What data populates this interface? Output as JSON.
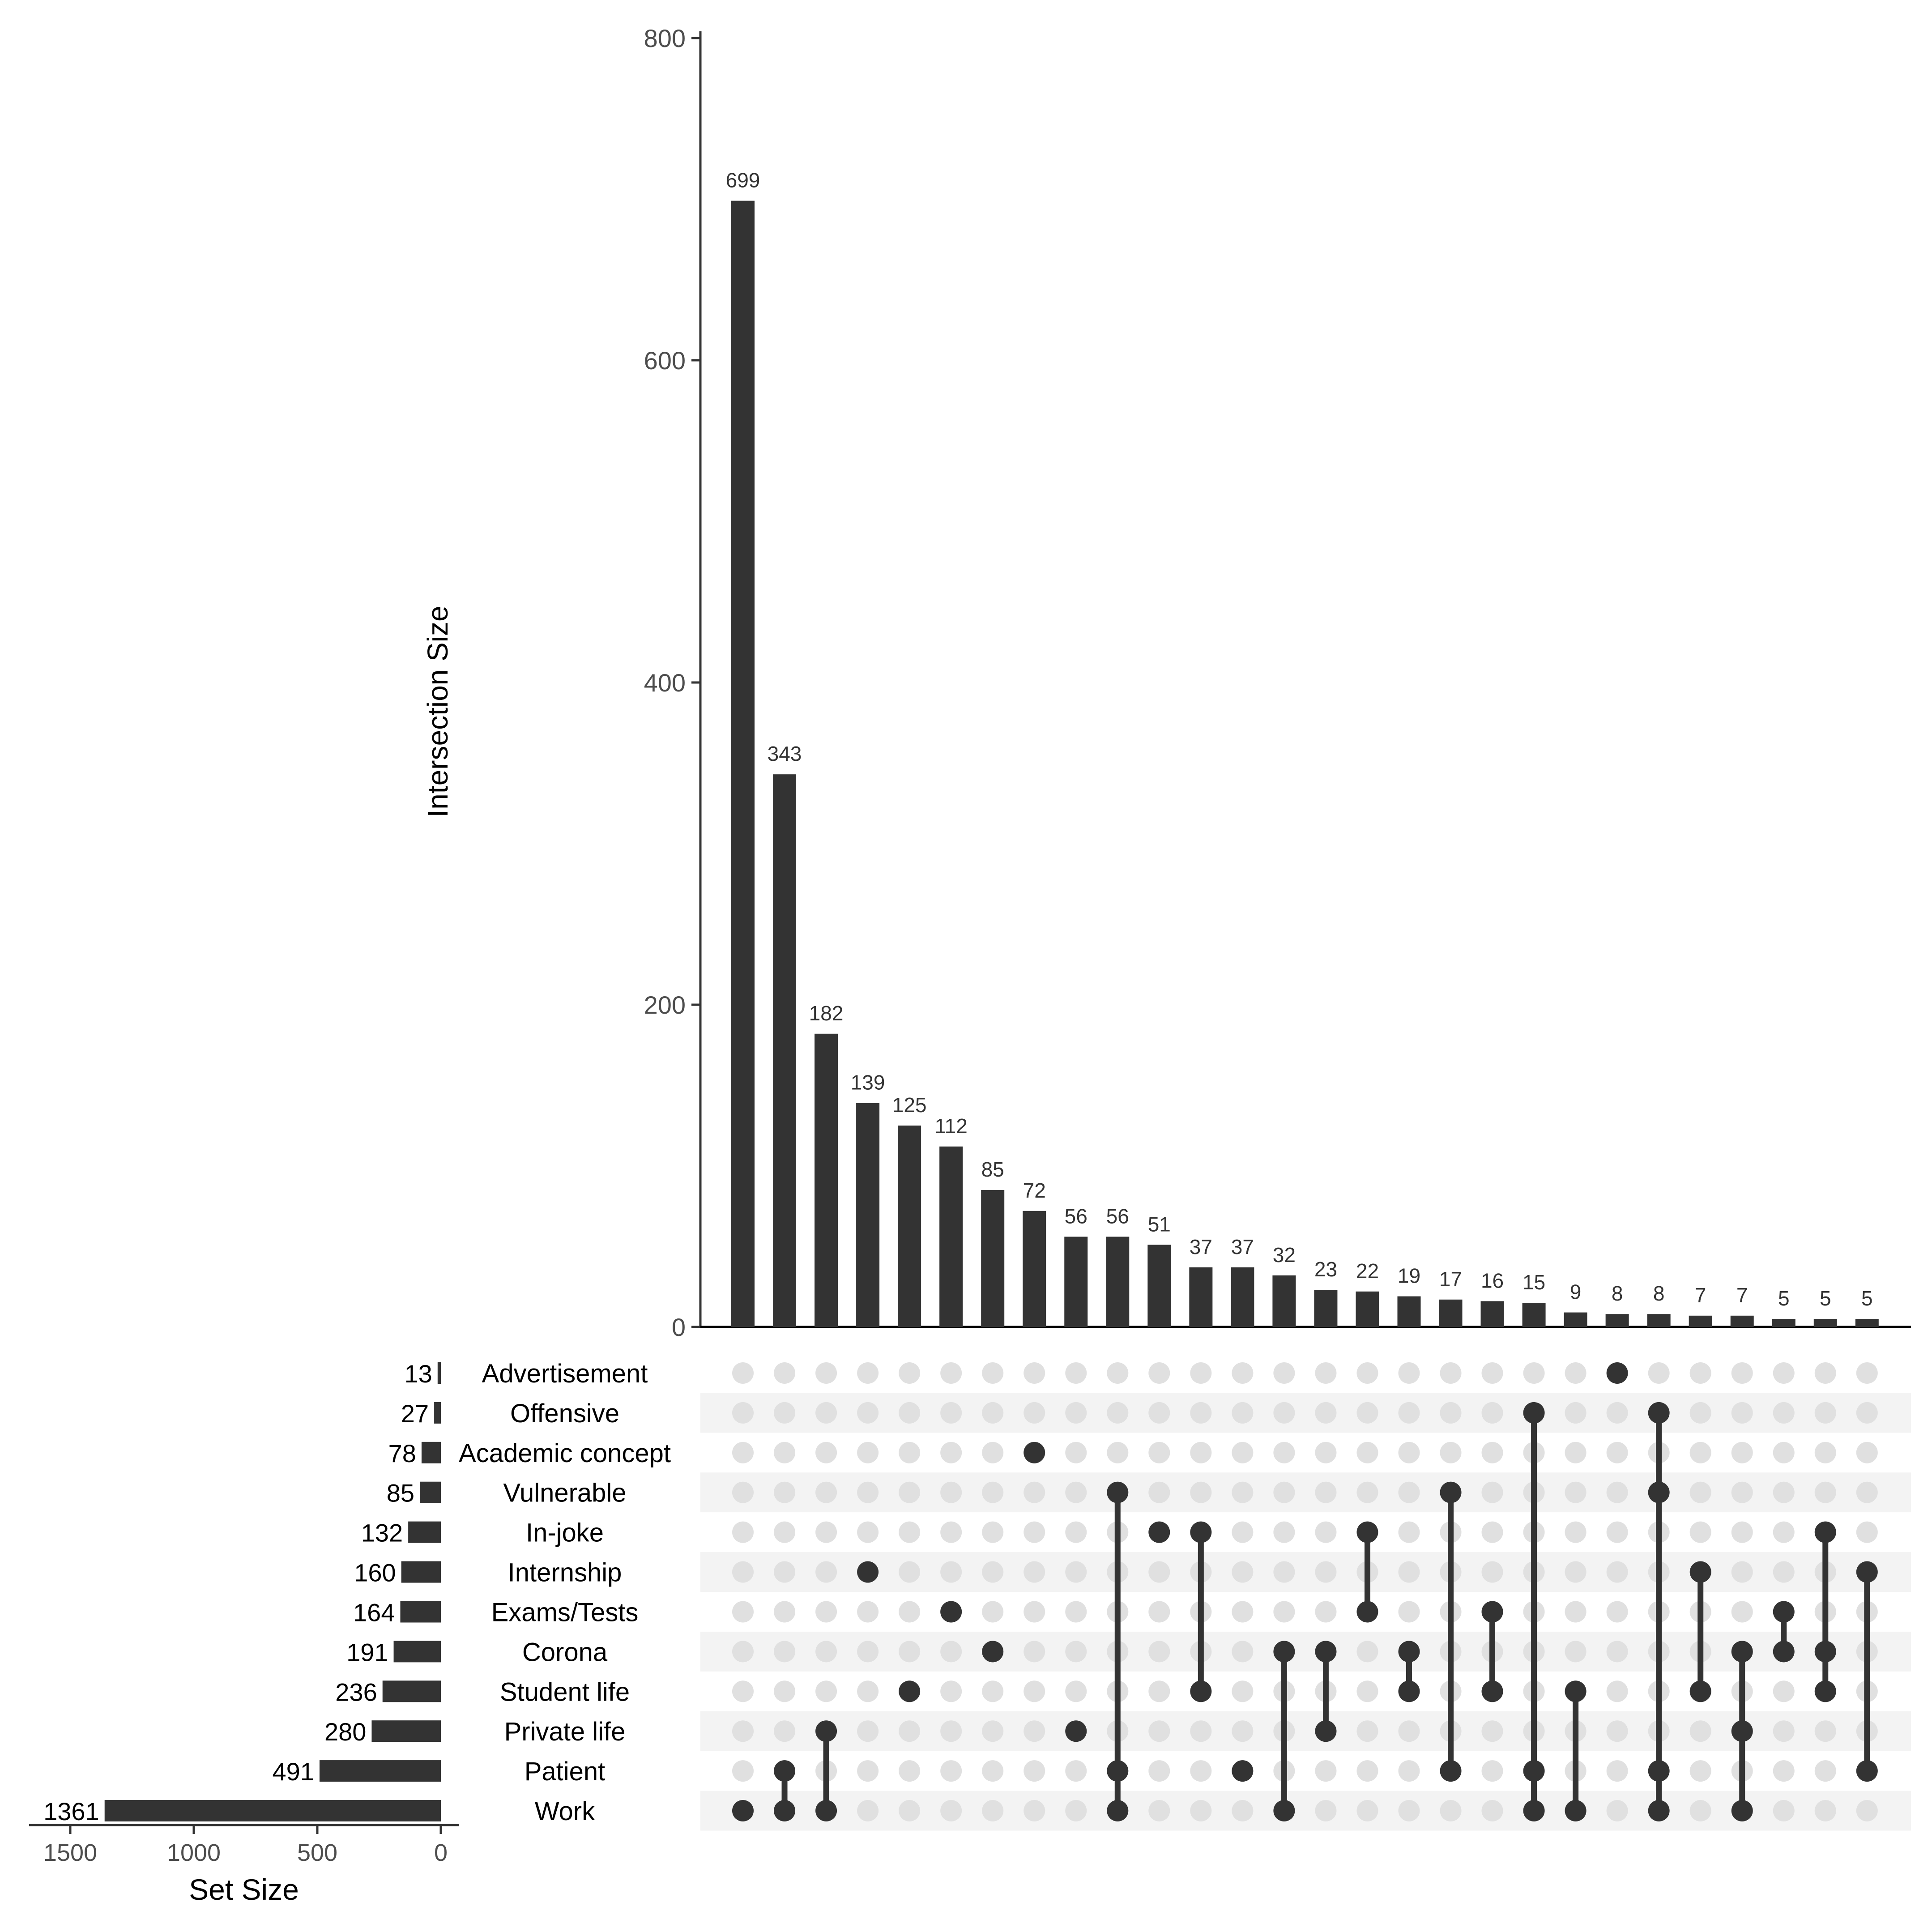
{
  "chart_data": {
    "type": "bar",
    "subtype": "upset",
    "intersection_axis": {
      "ylabel": "Intersection Size",
      "ylim": [
        0,
        800
      ],
      "ticks": [
        0,
        200,
        400,
        600,
        800
      ]
    },
    "set_size_axis": {
      "xlabel": "Set Size",
      "xlim": [
        1500,
        0
      ],
      "ticks": [
        1500,
        1000,
        500,
        0
      ]
    },
    "sets": [
      {
        "name": "Advertisement",
        "size": 13
      },
      {
        "name": "Offensive",
        "size": 27
      },
      {
        "name": "Academic concept",
        "size": 78
      },
      {
        "name": "Vulnerable",
        "size": 85
      },
      {
        "name": "In-joke",
        "size": 132
      },
      {
        "name": "Internship",
        "size": 160
      },
      {
        "name": "Exams/Tests",
        "size": 164
      },
      {
        "name": "Corona",
        "size": 191
      },
      {
        "name": "Student life",
        "size": 236
      },
      {
        "name": "Private life",
        "size": 280
      },
      {
        "name": "Patient",
        "size": 491
      },
      {
        "name": "Work",
        "size": 1361
      }
    ],
    "intersections": [
      {
        "value": 699,
        "sets": [
          "Work"
        ]
      },
      {
        "value": 343,
        "sets": [
          "Patient",
          "Work"
        ]
      },
      {
        "value": 182,
        "sets": [
          "Private life",
          "Work"
        ]
      },
      {
        "value": 139,
        "sets": [
          "Internship"
        ]
      },
      {
        "value": 125,
        "sets": [
          "Student life"
        ]
      },
      {
        "value": 112,
        "sets": [
          "Exams/Tests"
        ]
      },
      {
        "value": 85,
        "sets": [
          "Corona"
        ]
      },
      {
        "value": 72,
        "sets": [
          "Academic concept"
        ]
      },
      {
        "value": 56,
        "sets": [
          "Private life"
        ]
      },
      {
        "value": 56,
        "sets": [
          "Vulnerable",
          "Patient",
          "Work"
        ]
      },
      {
        "value": 51,
        "sets": [
          "In-joke"
        ]
      },
      {
        "value": 37,
        "sets": [
          "In-joke",
          "Student life"
        ]
      },
      {
        "value": 37,
        "sets": [
          "Patient"
        ]
      },
      {
        "value": 32,
        "sets": [
          "Corona",
          "Work"
        ]
      },
      {
        "value": 23,
        "sets": [
          "Corona",
          "Private life"
        ]
      },
      {
        "value": 22,
        "sets": [
          "In-joke",
          "Exams/Tests"
        ]
      },
      {
        "value": 19,
        "sets": [
          "Corona",
          "Student life"
        ]
      },
      {
        "value": 17,
        "sets": [
          "Vulnerable",
          "Patient"
        ]
      },
      {
        "value": 16,
        "sets": [
          "Exams/Tests",
          "Student life"
        ]
      },
      {
        "value": 15,
        "sets": [
          "Offensive",
          "Patient",
          "Work"
        ]
      },
      {
        "value": 9,
        "sets": [
          "Student life",
          "Work"
        ]
      },
      {
        "value": 8,
        "sets": [
          "Advertisement"
        ]
      },
      {
        "value": 8,
        "sets": [
          "Offensive",
          "Vulnerable",
          "Patient",
          "Work"
        ]
      },
      {
        "value": 7,
        "sets": [
          "Internship",
          "Student life"
        ]
      },
      {
        "value": 7,
        "sets": [
          "Corona",
          "Private life",
          "Work"
        ]
      },
      {
        "value": 5,
        "sets": [
          "Exams/Tests",
          "Corona"
        ]
      },
      {
        "value": 5,
        "sets": [
          "In-joke",
          "Corona",
          "Student life"
        ]
      },
      {
        "value": 5,
        "sets": [
          "Internship",
          "Patient"
        ]
      }
    ],
    "colors": {
      "bar": "#333333",
      "dot_active": "#333333",
      "dot_inactive": "#e0e0e0",
      "stripe": "#f3f3f3",
      "axis": "#333333"
    }
  }
}
